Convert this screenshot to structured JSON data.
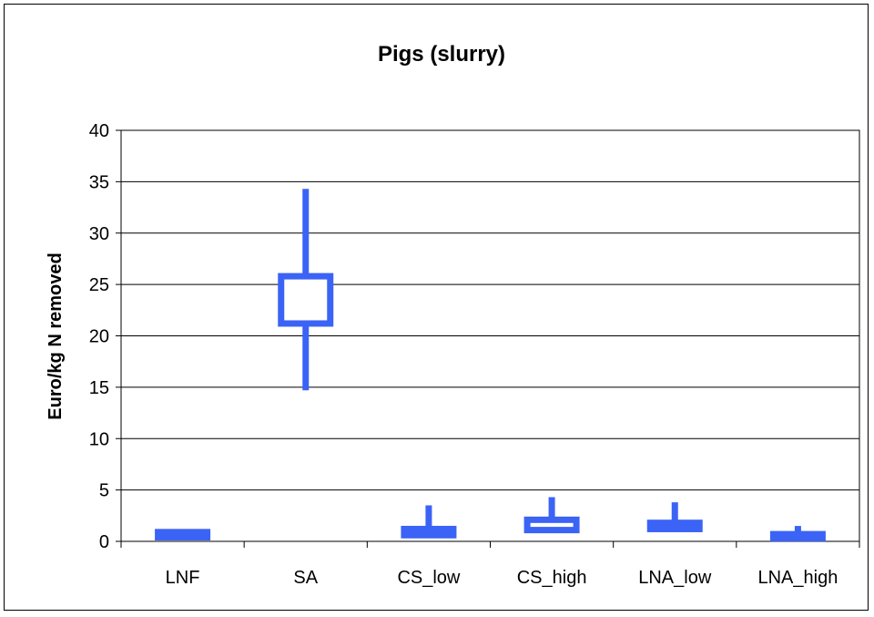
{
  "chart_data": {
    "type": "boxplot",
    "title": "Pigs (slurry)",
    "xlabel": "",
    "ylabel": "Euro/kg N removed",
    "ylim": [
      0,
      40
    ],
    "y_ticks": [
      0,
      5,
      10,
      15,
      20,
      25,
      30,
      35,
      40
    ],
    "grid": true,
    "legend": "none",
    "categories": [
      "LNF",
      "SA",
      "CS_low",
      "CS_high",
      "LNA_low",
      "LNA_high"
    ],
    "series": [
      {
        "boxes": [
          {
            "category": "LNF",
            "min": 0.4,
            "q1": 0.4,
            "q3": 0.9,
            "max": 1.1
          },
          {
            "category": "SA",
            "min": 14.7,
            "q1": 21.2,
            "q3": 25.8,
            "max": 34.3
          },
          {
            "category": "CS_low",
            "min": 0.6,
            "q1": 0.6,
            "q3": 1.2,
            "max": 3.5
          },
          {
            "category": "CS_high",
            "min": 0.8,
            "q1": 1.1,
            "q3": 2.1,
            "max": 4.3
          },
          {
            "category": "LNA_low",
            "min": 1.1,
            "q1": 1.2,
            "q3": 1.8,
            "max": 3.8
          },
          {
            "category": "LNA_high",
            "min": 0.3,
            "q1": 0.3,
            "q3": 0.7,
            "max": 1.5
          }
        ]
      }
    ],
    "colors": {
      "box": "#3b63f5",
      "grid": "#000000",
      "axis": "#000000"
    }
  }
}
